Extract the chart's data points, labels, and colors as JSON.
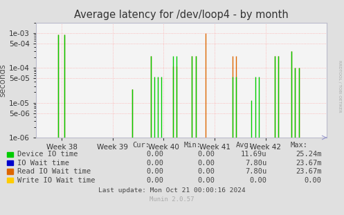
{
  "title": "Average latency for /dev/loop4 - by month",
  "ylabel": "seconds",
  "fig_bg": "#e0e0e0",
  "plot_bg": "#f4f4f4",
  "grid_color": "#ffaaaa",
  "spine_color": "#aaaacc",
  "ylim_min": 1e-06,
  "ylim_max": 0.002,
  "xlim_min": 37.5,
  "xlim_max": 43.2,
  "x_tick_positions": [
    38,
    39,
    40,
    41,
    42
  ],
  "x_tick_labels": [
    "Week 38",
    "Week 39",
    "Week 40",
    "Week 41",
    "Week 42"
  ],
  "ytick_vals": [
    1e-06,
    5e-06,
    1e-05,
    5e-05,
    0.0001,
    0.0005,
    0.001
  ],
  "ytick_labels": [
    "1e-06",
    "5e-06",
    "1e-05",
    "5e-05",
    "1e-04",
    "5e-04",
    "1e-03"
  ],
  "green_color": "#00cc00",
  "orange_color": "#dd6600",
  "spikes": [
    {
      "x": 37.93,
      "green": 0.0009,
      "orange": 0.0009
    },
    {
      "x": 38.05,
      "green": 0.0009,
      "orange": 0.0009
    },
    {
      "x": 39.38,
      "green": 2.5e-05,
      "orange": 2.5e-05
    },
    {
      "x": 39.75,
      "green": 0.00022,
      "orange": 0.00022
    },
    {
      "x": 39.82,
      "green": 5.5e-05,
      "orange": 1e-06
    },
    {
      "x": 39.89,
      "green": 5.5e-05,
      "orange": 1e-06
    },
    {
      "x": 39.96,
      "green": 5.5e-05,
      "orange": 1e-06
    },
    {
      "x": 40.18,
      "green": 0.00022,
      "orange": 0.00011
    },
    {
      "x": 40.25,
      "green": 0.00022,
      "orange": 0.00011
    },
    {
      "x": 40.55,
      "green": 0.00022,
      "orange": 0.00022
    },
    {
      "x": 40.63,
      "green": 0.00022,
      "orange": 0.00022
    },
    {
      "x": 40.82,
      "green": 1e-06,
      "orange": 0.001
    },
    {
      "x": 41.35,
      "green": 5.5e-05,
      "orange": 0.00022
    },
    {
      "x": 41.42,
      "green": 5.5e-05,
      "orange": 0.00022
    },
    {
      "x": 41.72,
      "green": 1.2e-05,
      "orange": 1e-06
    },
    {
      "x": 41.8,
      "green": 5.5e-05,
      "orange": 1e-06
    },
    {
      "x": 41.87,
      "green": 5.5e-05,
      "orange": 1e-06
    },
    {
      "x": 41.93,
      "green": 1e-06,
      "orange": 1e-06
    },
    {
      "x": 41.97,
      "green": 1e-06,
      "orange": 1e-06
    },
    {
      "x": 42.18,
      "green": 0.00022,
      "orange": 0.00022
    },
    {
      "x": 42.25,
      "green": 0.00022,
      "orange": 0.00022
    },
    {
      "x": 42.5,
      "green": 0.0003,
      "orange": 0.0003
    },
    {
      "x": 42.58,
      "green": 0.0001,
      "orange": 0.0001
    },
    {
      "x": 42.65,
      "green": 0.0001,
      "orange": 0.0001
    }
  ],
  "legend_labels": [
    "Device IO time",
    "IO Wait time",
    "Read IO Wait time",
    "Write IO Wait time"
  ],
  "legend_colors": [
    "#00cc00",
    "#0000cc",
    "#dd6600",
    "#ffcc00"
  ],
  "cur_values": [
    "0.00",
    "0.00",
    "0.00",
    "0.00"
  ],
  "min_values": [
    "0.00",
    "0.00",
    "0.00",
    "0.00"
  ],
  "avg_values": [
    "11.69u",
    "7.80u",
    "7.80u",
    "0.00"
  ],
  "max_values": [
    "25.24m",
    "23.67m",
    "23.67m",
    "0.00"
  ],
  "footer": "Last update: Mon Oct 21 00:00:16 2024",
  "munin_version": "Munin 2.0.57",
  "rrdtool_label": "RRDTOOL / TOBI OETIKER"
}
